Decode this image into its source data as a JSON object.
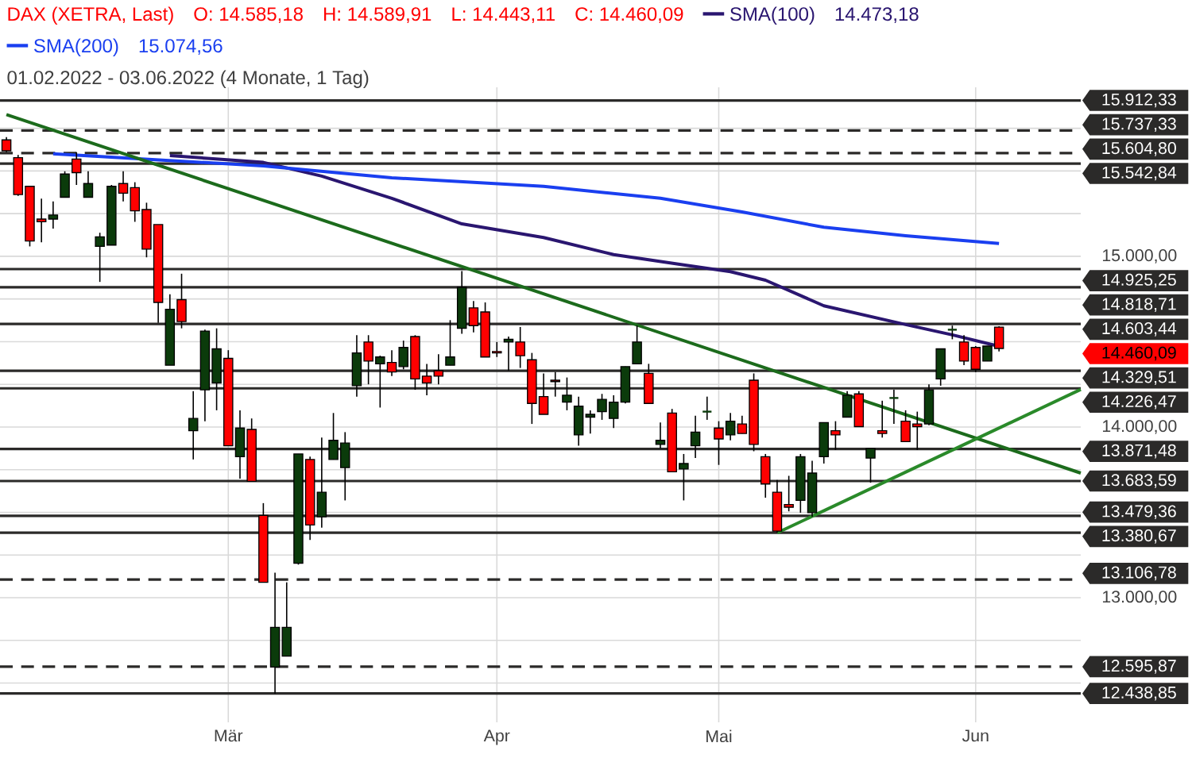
{
  "chart_data": {
    "type": "candlestick",
    "title": "DAX (XETRA, Last)",
    "subtitle": "01.02.2022 - 03.06.2022 (4 Monate, 1 Tag)",
    "annotations": [
      "O: 14.585,18",
      "H: 14.589,91",
      "L: 14.443,11",
      "C: 14.460,09",
      "14.473,18",
      "15.074,56",
      "14.460,09"
    ],
    "legend": "top left",
    "grid": true,
    "categories": [
      null,
      null,
      null,
      null,
      null,
      null,
      null,
      null,
      null,
      null,
      null,
      null,
      null,
      null,
      null,
      null,
      null,
      null,
      null,
      "Mär",
      null,
      null,
      null,
      null,
      null,
      null,
      null,
      null,
      null,
      null,
      null,
      null,
      null,
      null,
      null,
      null,
      null,
      null,
      null,
      null,
      null,
      null,
      "Apr",
      null,
      null,
      null,
      null,
      null,
      null,
      null,
      null,
      null,
      null,
      null,
      null,
      null,
      null,
      null,
      null,
      null,
      null,
      "Mai",
      null,
      null,
      null,
      null,
      null,
      null,
      null,
      null,
      null,
      null,
      null,
      null,
      null,
      null,
      null,
      null,
      null,
      null,
      null,
      null,
      null,
      "Jun",
      null,
      null,
      null,
      null,
      null,
      null,
      null,
      null,
      null
    ],
    "ohlc": [
      [
        15682,
        15698,
        15610,
        15618
      ],
      [
        15578,
        15594,
        15354,
        15362
      ],
      [
        15410,
        15410,
        15058,
        15090
      ],
      [
        15218,
        15338,
        15082,
        15202
      ],
      [
        15218,
        15322,
        15162,
        15242
      ],
      [
        15346,
        15498,
        15346,
        15482
      ],
      [
        15570,
        15610,
        15418,
        15490
      ],
      [
        15346,
        15498,
        15346,
        15426
      ],
      [
        15058,
        15138,
        14850,
        15114
      ],
      [
        15066,
        15418,
        15066,
        15410
      ],
      [
        15426,
        15498,
        15322,
        15370
      ],
      [
        15402,
        15434,
        15202,
        15266
      ],
      [
        15274,
        15314,
        14994,
        15042
      ],
      [
        15186,
        15186,
        14610,
        14730
      ],
      [
        14362,
        14778,
        14362,
        14690
      ],
      [
        14746,
        14898,
        14578,
        14618
      ],
      [
        13978,
        14210,
        13810,
        14050
      ],
      [
        14218,
        14570,
        14034,
        14562
      ],
      [
        14258,
        14578,
        14098,
        14458
      ],
      [
        14402,
        14450,
        13890,
        13890
      ],
      [
        13826,
        14098,
        13698,
        13994
      ],
      [
        13986,
        14050,
        13682,
        13682
      ],
      [
        13482,
        13554,
        13090,
        13090
      ],
      [
        12594,
        13146,
        12439,
        12826
      ],
      [
        12658,
        13090,
        12658,
        12826
      ],
      [
        13202,
        13842,
        13194,
        13842
      ],
      [
        13810,
        13826,
        13338,
        13426
      ],
      [
        13474,
        13938,
        13410,
        13618
      ],
      [
        13810,
        14082,
        13810,
        13922
      ],
      [
        13762,
        13970,
        13570,
        13906
      ],
      [
        14242,
        14538,
        14178,
        14434
      ],
      [
        14498,
        14538,
        14250,
        14386
      ],
      [
        14370,
        14418,
        14114,
        14410
      ],
      [
        14378,
        14450,
        14298,
        14322
      ],
      [
        14354,
        14506,
        14338,
        14466
      ],
      [
        14530,
        14538,
        14218,
        14282
      ],
      [
        14298,
        14370,
        14186,
        14258
      ],
      [
        14330,
        14426,
        14250,
        14298
      ],
      [
        14362,
        14626,
        14362,
        14410
      ],
      [
        14578,
        14914,
        14546,
        14818
      ],
      [
        14698,
        14738,
        14554,
        14594
      ],
      [
        14674,
        14730,
        14410,
        14410
      ],
      [
        14442,
        14498,
        14410,
        14434
      ],
      [
        14498,
        14530,
        14330,
        14514
      ],
      [
        14498,
        14586,
        14346,
        14418
      ],
      [
        14394,
        14434,
        14018,
        14138
      ],
      [
        14178,
        14314,
        14074,
        14074
      ],
      [
        14274,
        14322,
        14178,
        14266
      ],
      [
        14146,
        14290,
        14098,
        14186
      ],
      [
        13954,
        14178,
        13890,
        14122
      ],
      [
        14058,
        14098,
        13962,
        14074
      ],
      [
        14090,
        14194,
        14042,
        14162
      ],
      [
        14050,
        14186,
        13994,
        14146
      ],
      [
        14146,
        14354,
        14138,
        14354
      ],
      [
        14370,
        14594,
        14370,
        14498
      ],
      [
        14314,
        14370,
        14138,
        14138
      ],
      [
        13898,
        14026,
        13874,
        13922
      ],
      [
        14082,
        14106,
        13738,
        13738
      ],
      [
        13754,
        13842,
        13570,
        13786
      ],
      [
        13890,
        14066,
        13818,
        13970
      ],
      [
        14090,
        14178,
        14042,
        14090
      ],
      [
        13994,
        14034,
        13778,
        13930
      ],
      [
        13954,
        14082,
        13922,
        14034
      ],
      [
        14018,
        14066,
        13962,
        13962
      ],
      [
        14274,
        14314,
        13858,
        13898
      ],
      [
        13826,
        13842,
        13586,
        13666
      ],
      [
        13618,
        13690,
        13381,
        13390
      ],
      [
        13546,
        13714,
        13506,
        13530
      ],
      [
        13570,
        13842,
        13498,
        13826
      ],
      [
        13498,
        13802,
        13474,
        13730
      ],
      [
        13826,
        14026,
        13786,
        14026
      ],
      [
        13978,
        14034,
        13866,
        13954
      ],
      [
        14058,
        14210,
        14058,
        14186
      ],
      [
        14194,
        14210,
        14002,
        14002
      ],
      [
        13818,
        13874,
        13674,
        13874
      ],
      [
        13978,
        14154,
        13938,
        13962
      ],
      [
        14170,
        14218,
        14018,
        14170
      ],
      [
        14034,
        14098,
        13914,
        13914
      ],
      [
        14018,
        14090,
        13866,
        14002
      ],
      [
        14018,
        14250,
        14010,
        14218
      ],
      [
        14282,
        14458,
        14242,
        14458
      ],
      [
        14570,
        14594,
        14514,
        14570
      ],
      [
        14498,
        14538,
        14362,
        14386
      ],
      [
        14466,
        14474,
        14322,
        14338
      ],
      [
        14386,
        14474,
        14386,
        14474
      ],
      [
        14585.18,
        14589.91,
        14443.11,
        14460.09
      ],
      null,
      null,
      null,
      null,
      null,
      null,
      null
    ],
    "colors": [
      "#ff0000",
      "#ff0000",
      "#ff0000",
      "#ff0000",
      "#0b3b0b",
      "#0b3b0b",
      "#ff0000",
      "#0b3b0b",
      "#0b3b0b",
      "#0b3b0b",
      "#ff0000",
      "#ff0000",
      "#ff0000",
      "#ff0000",
      "#0b3b0b",
      "#ff0000",
      "#0b3b0b",
      "#0b3b0b",
      "#0b3b0b",
      "#ff0000",
      "#0b3b0b",
      "#ff0000",
      "#ff0000",
      "#0b3b0b",
      "#0b3b0b",
      "#0b3b0b",
      "#ff0000",
      "#0b3b0b",
      "#0b3b0b",
      "#0b3b0b",
      "#0b3b0b",
      "#ff0000",
      "#0b3b0b",
      "#ff0000",
      "#0b3b0b",
      "#ff0000",
      "#ff0000",
      "#ff0000",
      "#0b3b0b",
      "#0b3b0b",
      "#ff0000",
      "#ff0000",
      "#ff0000",
      "#0b3b0b",
      "#ff0000",
      "#ff0000",
      "#ff0000",
      "#ff0000",
      "#0b3b0b",
      "#0b3b0b",
      "#0b3b0b",
      "#0b3b0b",
      "#0b3b0b",
      "#0b3b0b",
      "#0b3b0b",
      "#ff0000",
      "#0b3b0b",
      "#ff0000",
      "#0b3b0b",
      "#0b3b0b",
      "#0b3b0b",
      "#ff0000",
      "#0b3b0b",
      "#ff0000",
      "#ff0000",
      "#ff0000",
      "#ff0000",
      "#ff0000",
      "#0b3b0b",
      "#0b3b0b",
      "#0b3b0b",
      "#ff0000",
      "#0b3b0b",
      "#ff0000",
      "#0b3b0b",
      "#ff0000",
      "#0b3b0b",
      "#ff0000",
      "#ff0000",
      "#0b3b0b",
      "#0b3b0b",
      "#0b3b0b",
      "#ff0000",
      "#ff0000",
      "#0b3b0b",
      "#ff0000",
      null,
      null,
      null,
      null,
      null,
      null,
      null
    ],
    "series": [
      {
        "type": "line",
        "name": "SMA(100)",
        "color": "#2a1670",
        "values": [
          null,
          null,
          null,
          null,
          null,
          null,
          null,
          null,
          null,
          null,
          null,
          null,
          null,
          null,
          15590,
          null,
          null,
          null,
          null,
          null,
          null,
          null,
          15550,
          null,
          null,
          null,
          null,
          15470,
          null,
          null,
          null,
          null,
          null,
          15340,
          null,
          null,
          null,
          null,
          null,
          15190,
          null,
          null,
          null,
          null,
          null,
          null,
          15110,
          null,
          null,
          null,
          null,
          null,
          15010,
          null,
          null,
          null,
          null,
          null,
          14950,
          null,
          null,
          null,
          14910,
          null,
          null,
          14860,
          null,
          null,
          null,
          null,
          14710,
          null,
          null,
          null,
          null,
          null,
          null,
          14600,
          null,
          null,
          null,
          14540,
          null,
          null,
          null,
          14473.18,
          null,
          null,
          null,
          null,
          null,
          null,
          null
        ]
      },
      {
        "type": "line",
        "name": "SMA(200)",
        "color": "#1a3ff0",
        "values": [
          null,
          null,
          null,
          null,
          15600,
          null,
          null,
          null,
          null,
          null,
          null,
          null,
          null,
          null,
          null,
          null,
          null,
          null,
          null,
          null,
          null,
          null,
          15530,
          null,
          null,
          null,
          null,
          null,
          null,
          null,
          null,
          null,
          null,
          15460,
          null,
          null,
          null,
          null,
          null,
          null,
          null,
          null,
          null,
          null,
          null,
          null,
          15410,
          null,
          null,
          null,
          null,
          null,
          null,
          null,
          null,
          null,
          15340,
          null,
          null,
          null,
          null,
          null,
          null,
          15260,
          null,
          null,
          null,
          null,
          null,
          null,
          15170,
          null,
          null,
          null,
          null,
          null,
          null,
          15120,
          null,
          null,
          null,
          null,
          null,
          null,
          null,
          15074.56,
          null,
          null,
          null,
          null,
          null,
          null,
          null
        ]
      },
      {
        "type": "line",
        "color": "#1c6b1c",
        "values": [
          15830,
          null,
          null,
          null,
          null,
          null,
          null,
          null,
          null,
          null,
          null,
          null,
          null,
          null,
          null,
          null,
          null,
          null,
          null,
          null,
          null,
          null,
          null,
          null,
          null,
          null,
          null,
          null,
          null,
          null,
          null,
          null,
          null,
          null,
          null,
          null,
          null,
          null,
          null,
          null,
          null,
          null,
          null,
          null,
          null,
          null,
          null,
          null,
          null,
          null,
          null,
          null,
          null,
          null,
          null,
          null,
          null,
          null,
          null,
          null,
          null,
          null,
          null,
          null,
          null,
          null,
          null,
          null,
          null,
          null,
          null,
          null,
          null,
          null,
          null,
          null,
          null,
          null,
          null,
          null,
          null,
          null,
          null,
          null,
          null,
          null,
          null,
          null,
          null,
          null,
          null,
          null,
          13730
        ]
      },
      {
        "type": "line",
        "color": "#2a8a2a",
        "values": [
          null,
          null,
          null,
          null,
          null,
          null,
          null,
          null,
          null,
          null,
          null,
          null,
          null,
          null,
          null,
          null,
          null,
          null,
          null,
          null,
          null,
          null,
          null,
          null,
          null,
          null,
          null,
          null,
          null,
          null,
          null,
          null,
          null,
          null,
          null,
          null,
          null,
          null,
          null,
          null,
          null,
          null,
          null,
          null,
          null,
          null,
          null,
          null,
          null,
          null,
          null,
          null,
          null,
          null,
          null,
          null,
          null,
          null,
          null,
          null,
          null,
          null,
          null,
          null,
          null,
          null,
          13380,
          null,
          null,
          null,
          null,
          null,
          null,
          null,
          null,
          null,
          null,
          null,
          null,
          null,
          null,
          null,
          null,
          null,
          null,
          null,
          null,
          null,
          null,
          null,
          null,
          null,
          14220
        ]
      }
    ],
    "ylim": [
      12270,
      15990
    ],
    "yticks": [
      {
        "value": 12500,
        "label": null
      },
      {
        "value": 12750,
        "label": null
      },
      {
        "value": 13000,
        "label": "13.000,00"
      },
      {
        "value": 13250,
        "label": null
      },
      {
        "value": 13500,
        "label": null
      },
      {
        "value": 13750,
        "label": null
      },
      {
        "value": 14000,
        "label": "14.000,00"
      },
      {
        "value": 14250,
        "label": null
      },
      {
        "value": 14500,
        "label": null
      },
      {
        "value": 14750,
        "label": null
      },
      {
        "value": 15000,
        "label": "15.000,00"
      },
      {
        "value": 15250,
        "label": null
      },
      {
        "value": 15500,
        "label": null
      },
      {
        "value": 15750,
        "label": null
      }
    ],
    "ref_lines": [
      {
        "axis": "y",
        "value": 15912.33,
        "label": "15.912,33",
        "color": "#2b2a29",
        "line_style": "solid"
      },
      {
        "axis": "y",
        "value": 15737.33,
        "label": "15.737,33",
        "color": "#2b2a29",
        "line_style": "dashed"
      },
      {
        "axis": "y",
        "value": 15604.8,
        "label": "15.604,80",
        "color": "#2b2a29",
        "line_style": "dashed"
      },
      {
        "axis": "y",
        "value": 15542.84,
        "label": "15.542,84",
        "color": "#2b2a29",
        "line_style": "solid"
      },
      {
        "axis": "y",
        "value": 14925.25,
        "label": "14.925,25",
        "color": "#2b2a29",
        "line_style": "solid"
      },
      {
        "axis": "y",
        "value": 14818.71,
        "label": "14.818,71",
        "color": "#2b2a29",
        "line_style": "solid"
      },
      {
        "axis": "y",
        "value": 14603.44,
        "label": "14.603,44",
        "color": "#2b2a29",
        "line_style": "solid"
      },
      {
        "axis": "y",
        "value": 14329.51,
        "label": "14.329,51",
        "color": "#2b2a29",
        "line_style": "solid"
      },
      {
        "axis": "y",
        "value": 14226.47,
        "label": "14.226,47",
        "color": "#2b2a29",
        "line_style": "solid"
      },
      {
        "axis": "y",
        "value": 13871.48,
        "label": "13.871,48",
        "color": "#2b2a29",
        "line_style": "solid"
      },
      {
        "axis": "y",
        "value": 13683.59,
        "label": "13.683,59",
        "color": "#2b2a29",
        "line_style": "solid"
      },
      {
        "axis": "y",
        "value": 13479.36,
        "label": "13.479,36",
        "color": "#2b2a29",
        "line_style": "solid"
      },
      {
        "axis": "y",
        "value": 13380.67,
        "label": "13.380,67",
        "color": "#2b2a29",
        "line_style": "solid"
      },
      {
        "axis": "y",
        "value": 13106.78,
        "label": "13.106,78",
        "color": "#2b2a29",
        "line_style": "dashed"
      },
      {
        "axis": "y",
        "value": 12595.87,
        "label": "12.595,87",
        "color": "#2b2a29",
        "line_style": "dashed"
      },
      {
        "axis": "y",
        "value": 12438.85,
        "label": "12.438,85",
        "color": "#2b2a29",
        "line_style": "solid"
      }
    ]
  }
}
